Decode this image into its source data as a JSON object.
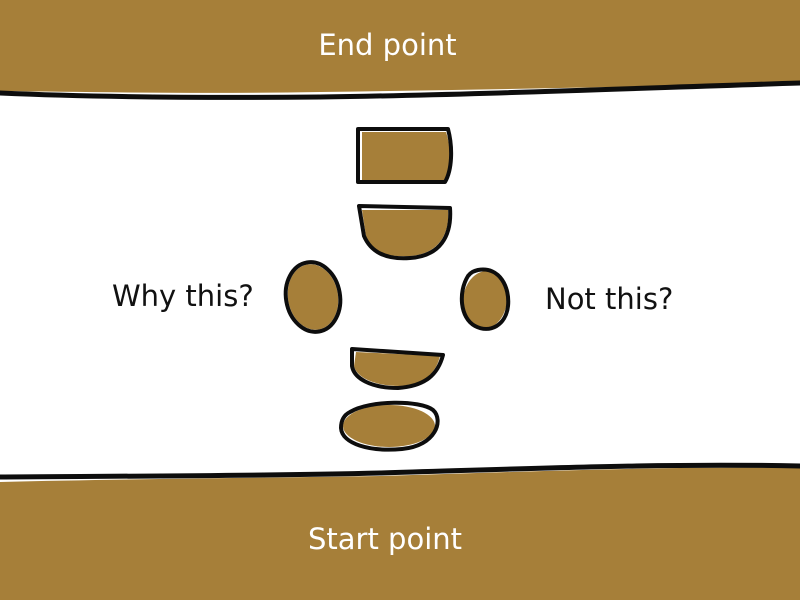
{
  "colors": {
    "band": "#a67f39",
    "stone": "#a67f39",
    "outline": "#0d0d0d",
    "band_text": "#ffffff",
    "side_text": "#111111",
    "background": "#ffffff"
  },
  "top_band": {
    "label": "End point"
  },
  "bottom_band": {
    "label": "Start point"
  },
  "left_question": "Why this?",
  "right_question": "Not this?",
  "stones": [
    {
      "name": "stone-top"
    },
    {
      "name": "stone-upper"
    },
    {
      "name": "stone-left"
    },
    {
      "name": "stone-right"
    },
    {
      "name": "stone-lower"
    },
    {
      "name": "stone-bottom"
    }
  ]
}
